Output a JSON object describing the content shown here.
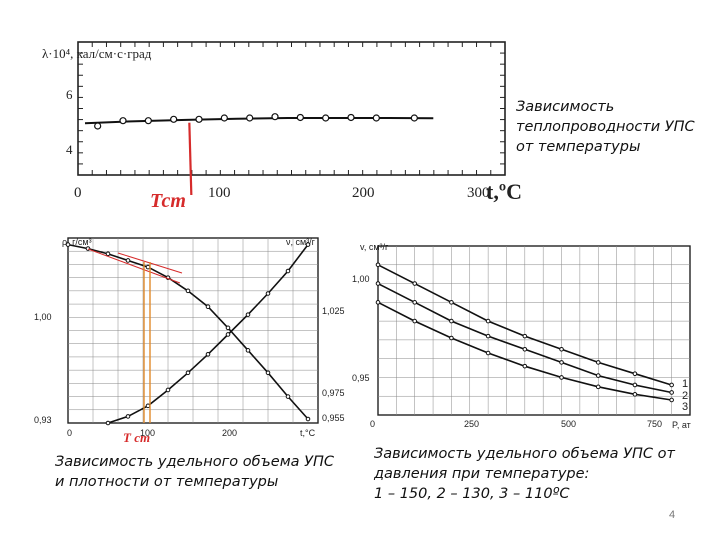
{
  "captions": {
    "top": [
      "Зависимость",
      "теплопроводности УПС",
      " от температуры"
    ],
    "bottom_left": [
      "Зависимость удельного объема УПС",
      " и  плотности от температуры"
    ],
    "bottom_right": [
      "Зависимость удельного объема УПС от",
      "давления при температуре:",
      " 1 – 150, 2 – 130, 3 – 110ºС"
    ]
  },
  "page_number": "4",
  "colors": {
    "axis": "#222222",
    "curve": "#111111",
    "marker": "#d62b2b",
    "grid": "#888888"
  },
  "chart_data": [
    {
      "type": "line",
      "xlim": [
        0,
        300
      ],
      "ylim": [
        4,
        7
      ],
      "ylabel": "λ·10⁴, кал/см·с·град",
      "xlabel": "t,ºC",
      "ytick_labels": [
        "6",
        "4"
      ],
      "xtick_labels": [
        "0",
        "100",
        "200",
        "300"
      ],
      "x": [
        10,
        30,
        50,
        70,
        90,
        110,
        130,
        150,
        170,
        190,
        210,
        230,
        260
      ],
      "values": [
        4.9,
        5.1,
        5.1,
        5.15,
        5.15,
        5.2,
        5.2,
        5.25,
        5.22,
        5.2,
        5.22,
        5.2,
        5.2
      ],
      "curve_x": [
        0,
        40,
        80,
        120,
        160,
        200,
        240,
        275
      ],
      "curve_y": [
        5.0,
        5.08,
        5.13,
        5.17,
        5.2,
        5.2,
        5.2,
        5.19
      ],
      "marker": {
        "label": "Тст",
        "x": 80
      }
    },
    {
      "type": "line",
      "xlim": [
        0,
        250
      ],
      "ylim": [
        0.93,
        1.07
      ],
      "ylabel": "ρ, г/см³",
      "y2label": "ν, см³/г",
      "xlabel": "t,°C",
      "ytick_labels": [
        "1,00",
        "0,93"
      ],
      "y2tick_labels": [
        "1,025",
        "0,975",
        "0,955"
      ],
      "xtick_labels": [
        "0",
        "100",
        "200"
      ],
      "series": [
        {
          "x": [
            0,
            20,
            40,
            60,
            80,
            100,
            120,
            140,
            160,
            180,
            200,
            220,
            240
          ],
          "values": [
            1.065,
            1.062,
            1.058,
            1.053,
            1.048,
            1.04,
            1.03,
            1.018,
            1.002,
            0.985,
            0.968,
            0.95,
            0.933
          ]
        },
        {
          "x": [
            40,
            60,
            80,
            100,
            120,
            140,
            160,
            180,
            200,
            220,
            240
          ],
          "values": [
            0.93,
            0.935,
            0.943,
            0.955,
            0.968,
            0.982,
            0.997,
            1.012,
            1.028,
            1.045,
            1.065
          ]
        }
      ],
      "marker": {
        "label": "Т ст",
        "x": 80
      }
    },
    {
      "type": "line",
      "xlim": [
        0,
        850
      ],
      "ylim": [
        0.93,
        1.02
      ],
      "ylabel": "v, см³/г",
      "xlabel": "P, ат",
      "ytick_labels": [
        "1,00",
        "0,95",
        "0"
      ],
      "xtick_labels": [
        "250",
        "500",
        "750"
      ],
      "series": [
        {
          "name": "1",
          "x": [
            0,
            100,
            200,
            300,
            400,
            500,
            600,
            700,
            800
          ],
          "values": [
            1.01,
            1.0,
            0.99,
            0.98,
            0.972,
            0.965,
            0.958,
            0.952,
            0.946
          ]
        },
        {
          "name": "2",
          "x": [
            0,
            100,
            200,
            300,
            400,
            500,
            600,
            700,
            800
          ],
          "values": [
            1.0,
            0.99,
            0.98,
            0.972,
            0.965,
            0.958,
            0.951,
            0.946,
            0.942
          ]
        },
        {
          "name": "3",
          "x": [
            0,
            100,
            200,
            300,
            400,
            500,
            600,
            700,
            800
          ],
          "values": [
            0.99,
            0.98,
            0.971,
            0.963,
            0.956,
            0.95,
            0.945,
            0.941,
            0.938
          ]
        }
      ]
    }
  ]
}
